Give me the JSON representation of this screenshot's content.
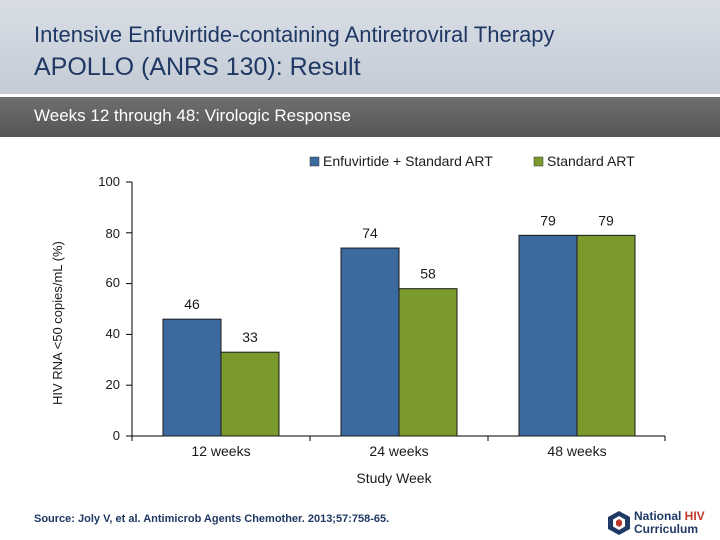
{
  "header": {
    "supertitle": "Intensive Enfuvirtide-containing Antiretroviral Therapy",
    "title": "APOLLO (ANRS 130): Result"
  },
  "subtitle": "Weeks 12 through 48: Virologic Response",
  "source": "Source: Joly V, et al. Antimicrob Agents Chemother. 2013;57:758-65.",
  "logo": {
    "line1a": "National ",
    "line1b": "HIV",
    "line2": "Curriculum"
  },
  "colors": {
    "blue": "#3d6a9e",
    "green": "#7a9a2e",
    "navy": "#1f3864"
  },
  "chart_data": {
    "type": "bar",
    "categories": [
      "12 weeks",
      "24 weeks",
      "48 weeks"
    ],
    "series": [
      {
        "name": "Enfuvirtide + Standard ART",
        "values": [
          46,
          74,
          79
        ],
        "color": "#3d6a9e"
      },
      {
        "name": "Standard ART",
        "values": [
          33,
          58,
          79
        ],
        "color": "#7a9a2e"
      }
    ],
    "xlabel": "Study Week",
    "ylabel": "HIV RNA <50 copies/mL (%)",
    "ylim": [
      0,
      100
    ],
    "yticks": [
      "0",
      "20",
      "40",
      "60",
      "80",
      "100"
    ],
    "legend": "top-right"
  }
}
